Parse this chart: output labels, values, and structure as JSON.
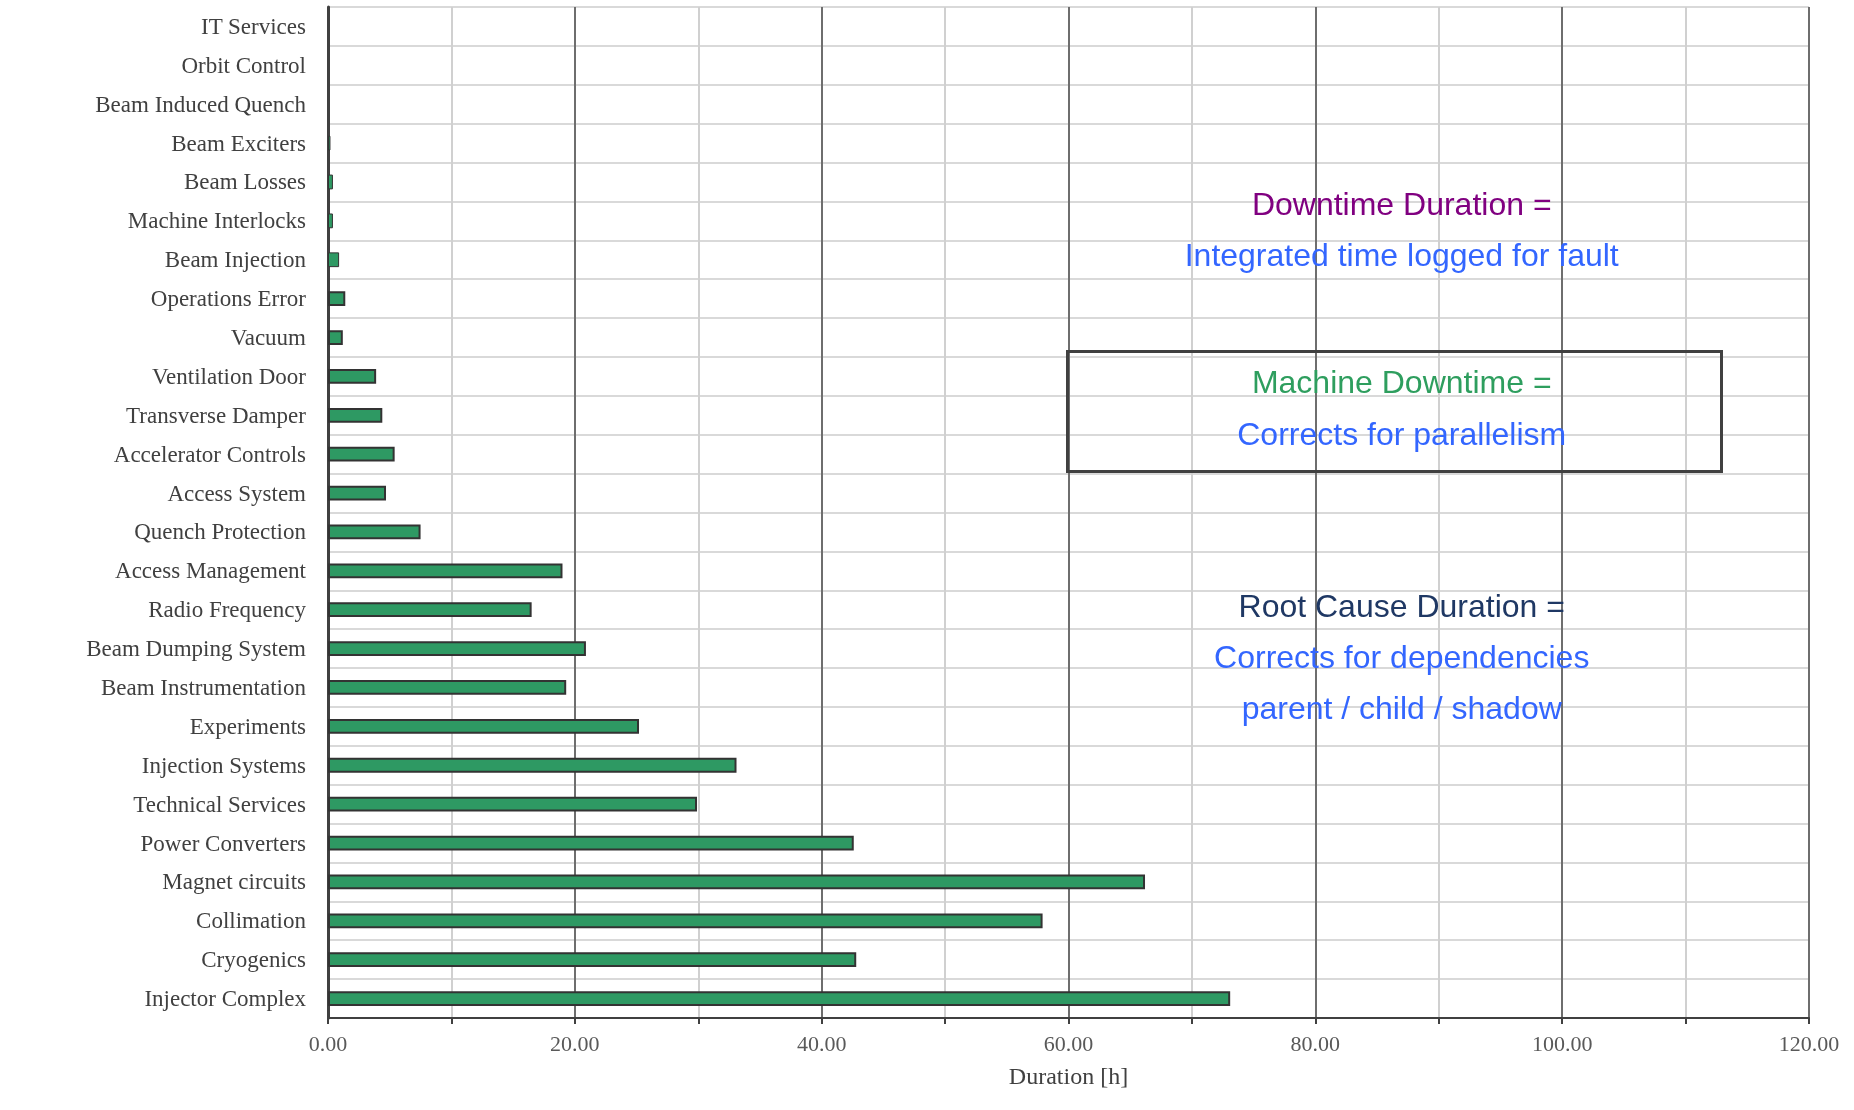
{
  "chart_data": {
    "type": "bar",
    "orientation": "horizontal",
    "xlabel": "Duration [h]",
    "categories": [
      "IT Services",
      "Orbit Control",
      "Beam Induced Quench",
      "Beam Exciters",
      "Beam Losses",
      "Machine Interlocks",
      "Beam Injection",
      "Operations Error",
      "Vacuum",
      "Ventilation Door",
      "Transverse Damper",
      "Accelerator Controls",
      "Access System",
      "Quench Protection",
      "Access Management",
      "Radio Frequency",
      "Beam Dumping System",
      "Beam Instrumentation",
      "Experiments",
      "Injection Systems",
      "Technical Services",
      "Power Converters",
      "Magnet circuits",
      "Collimation",
      "Cryogenics",
      "Injector Complex"
    ],
    "values": [
      0,
      0,
      0,
      0.2,
      0.4,
      0.4,
      0.9,
      1.4,
      1.2,
      3.9,
      4.4,
      5.4,
      4.7,
      7.5,
      19.0,
      16.5,
      20.9,
      19.3,
      25.2,
      33.1,
      29.9,
      42.6,
      66.2,
      57.9,
      42.8,
      73.1
    ],
    "color": "#2e9963",
    "xlim": [
      0,
      120
    ],
    "xticks": [
      {
        "value": 0,
        "label": "0.00"
      },
      {
        "value": 20,
        "label": "20.00"
      },
      {
        "value": 40,
        "label": "40.00"
      },
      {
        "value": 60,
        "label": "60.00"
      },
      {
        "value": 80,
        "label": "80.00"
      },
      {
        "value": 100,
        "label": "100.00"
      },
      {
        "value": 120,
        "label": "120.00"
      }
    ],
    "grid": true,
    "annotations": [
      "Downtime Duration =",
      "Integrated time logged for fault",
      "Machine Downtime =",
      "Corrects for parallelism",
      "Root Cause Duration =",
      "Corrects for dependencies",
      "parent / child / shadow"
    ]
  }
}
